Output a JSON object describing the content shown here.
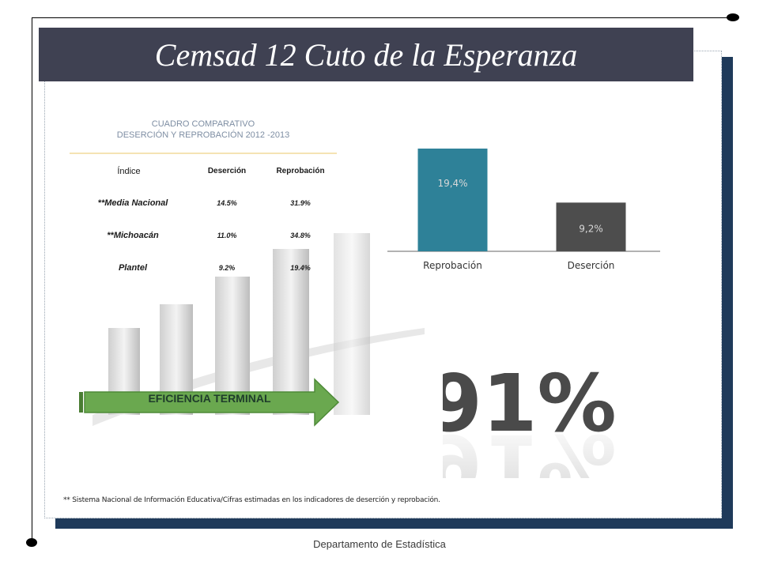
{
  "title": "Cemsad 12 Cuto de la Esperanza",
  "table": {
    "title_line1": "CUADRO COMPARATIVO",
    "title_line2": "DESERCIÓN Y REPROBACIÓN  2012 -2013",
    "headers": [
      "Índice",
      "Deserción",
      "Reprobación"
    ],
    "rows": [
      {
        "label": "**Media Nacional",
        "desercion": "14.5%",
        "reprobacion": "31.9%"
      },
      {
        "label": "**Michoacán",
        "desercion": "11.0%",
        "reprobacion": "34.8%"
      },
      {
        "label": "Plantel",
        "desercion": "9.2%",
        "reprobacion": "19.4%"
      }
    ]
  },
  "chart_data": {
    "type": "bar",
    "title": "",
    "xlabel": "",
    "ylabel": "",
    "categories": [
      "Reprobación",
      "Deserción"
    ],
    "values": [
      19.4,
      9.2
    ],
    "data_labels": [
      "19,4%",
      "9,2%"
    ],
    "bar_colors": [
      "#2e8198",
      "#4d4d4d"
    ],
    "ylim": [
      0,
      20
    ],
    "grid": false,
    "legend": "none"
  },
  "efficiency": {
    "label": "EFICIENCIA TERMINAL",
    "value": "91%"
  },
  "footnote": "** Sistema Nacional de Información Educativa/Cifras estimadas en los indicadores de deserción y reprobación.",
  "footer": "Departamento de Estadística",
  "colors": {
    "title_bg": "#3f4152",
    "frame_shadow": "#1f3a5a",
    "arrow": "#6aa84f",
    "big_number": "#4a4a4a"
  }
}
